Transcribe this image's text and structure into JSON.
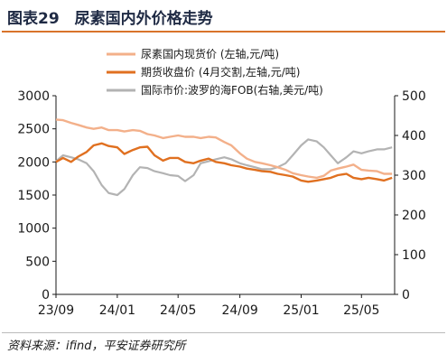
{
  "figure": {
    "title": "图表29　尿素国内外价格走势",
    "source": "资料来源：ifind，平安证券研究所"
  },
  "colors": {
    "title": "#1f2a44",
    "rule": "#d9732a",
    "series_domestic_spot": "#f3b08a",
    "series_futures": "#e07020",
    "series_international": "#b3b3b3"
  },
  "chart_data": {
    "type": "line",
    "x_ticks": [
      "23/09",
      "24/01",
      "24/05",
      "24/09",
      "25/01",
      "25/05"
    ],
    "x_range": [
      "2023-09",
      "2025-07"
    ],
    "y_left": {
      "ticks": [
        0,
        500,
        1000,
        1500,
        2000,
        2500,
        3000
      ],
      "ylim": [
        0,
        3000
      ]
    },
    "y_right": {
      "ticks": [
        0,
        100,
        200,
        300,
        400,
        500
      ],
      "ylim": [
        0,
        500
      ]
    },
    "grid": false,
    "legend_position": "top",
    "series": [
      {
        "name": "尿素国内现货价 (左轴,元/吨)",
        "axis": "left",
        "color_key": "series_domestic_spot",
        "points": [
          [
            "2023-09-01",
            2640
          ],
          [
            "2023-09-15",
            2630
          ],
          [
            "2023-10-01",
            2590
          ],
          [
            "2023-10-15",
            2560
          ],
          [
            "2023-11-01",
            2520
          ],
          [
            "2023-11-15",
            2500
          ],
          [
            "2023-12-01",
            2520
          ],
          [
            "2023-12-15",
            2480
          ],
          [
            "2024-01-01",
            2480
          ],
          [
            "2024-01-15",
            2460
          ],
          [
            "2024-02-01",
            2480
          ],
          [
            "2024-02-15",
            2470
          ],
          [
            "2024-03-01",
            2420
          ],
          [
            "2024-03-15",
            2400
          ],
          [
            "2024-04-01",
            2360
          ],
          [
            "2024-04-15",
            2380
          ],
          [
            "2024-05-01",
            2400
          ],
          [
            "2024-05-15",
            2380
          ],
          [
            "2024-06-01",
            2380
          ],
          [
            "2024-06-15",
            2360
          ],
          [
            "2024-07-01",
            2380
          ],
          [
            "2024-07-15",
            2370
          ],
          [
            "2024-08-01",
            2300
          ],
          [
            "2024-08-15",
            2250
          ],
          [
            "2024-09-01",
            2130
          ],
          [
            "2024-09-15",
            2050
          ],
          [
            "2024-10-01",
            2000
          ],
          [
            "2024-10-15",
            1980
          ],
          [
            "2024-11-01",
            1950
          ],
          [
            "2024-11-15",
            1920
          ],
          [
            "2024-12-01",
            1880
          ],
          [
            "2024-12-15",
            1830
          ],
          [
            "2025-01-01",
            1800
          ],
          [
            "2025-01-15",
            1780
          ],
          [
            "2025-02-01",
            1760
          ],
          [
            "2025-02-15",
            1790
          ],
          [
            "2025-03-01",
            1870
          ],
          [
            "2025-03-15",
            1900
          ],
          [
            "2025-04-01",
            1930
          ],
          [
            "2025-04-15",
            1960
          ],
          [
            "2025-05-01",
            1880
          ],
          [
            "2025-05-15",
            1870
          ],
          [
            "2025-06-01",
            1860
          ],
          [
            "2025-06-15",
            1820
          ],
          [
            "2025-07-01",
            1820
          ]
        ]
      },
      {
        "name": "期货收盘价 (4月交割,左轴,元/吨)",
        "axis": "left",
        "color_key": "series_futures",
        "points": [
          [
            "2023-09-01",
            2000
          ],
          [
            "2023-09-15",
            2060
          ],
          [
            "2023-10-01",
            2000
          ],
          [
            "2023-10-15",
            2080
          ],
          [
            "2023-11-01",
            2150
          ],
          [
            "2023-11-15",
            2250
          ],
          [
            "2023-12-01",
            2280
          ],
          [
            "2023-12-15",
            2240
          ],
          [
            "2024-01-01",
            2220
          ],
          [
            "2024-01-15",
            2120
          ],
          [
            "2024-02-01",
            2180
          ],
          [
            "2024-02-15",
            2220
          ],
          [
            "2024-03-01",
            2230
          ],
          [
            "2024-03-15",
            2100
          ],
          [
            "2024-04-01",
            2020
          ],
          [
            "2024-04-15",
            2060
          ],
          [
            "2024-05-01",
            2060
          ],
          [
            "2024-05-15",
            2000
          ],
          [
            "2024-06-01",
            1980
          ],
          [
            "2024-06-15",
            2020
          ],
          [
            "2024-07-01",
            2050
          ],
          [
            "2024-07-15",
            2000
          ],
          [
            "2024-08-01",
            1980
          ],
          [
            "2024-08-15",
            1950
          ],
          [
            "2024-09-01",
            1930
          ],
          [
            "2024-09-15",
            1900
          ],
          [
            "2024-10-01",
            1880
          ],
          [
            "2024-10-15",
            1860
          ],
          [
            "2024-11-01",
            1850
          ],
          [
            "2024-11-15",
            1820
          ],
          [
            "2024-12-01",
            1800
          ],
          [
            "2024-12-15",
            1780
          ],
          [
            "2025-01-01",
            1720
          ],
          [
            "2025-01-15",
            1700
          ],
          [
            "2025-02-01",
            1720
          ],
          [
            "2025-02-15",
            1740
          ],
          [
            "2025-03-01",
            1760
          ],
          [
            "2025-03-15",
            1800
          ],
          [
            "2025-04-01",
            1820
          ],
          [
            "2025-04-15",
            1760
          ],
          [
            "2025-05-01",
            1740
          ],
          [
            "2025-05-15",
            1760
          ],
          [
            "2025-06-01",
            1740
          ],
          [
            "2025-06-15",
            1720
          ],
          [
            "2025-07-01",
            1760
          ]
        ]
      },
      {
        "name": "国际市价:波罗的海FOB(右轴,美元/吨)",
        "axis": "right",
        "color_key": "series_international",
        "points": [
          [
            "2023-09-01",
            335
          ],
          [
            "2023-09-15",
            350
          ],
          [
            "2023-10-01",
            345
          ],
          [
            "2023-10-15",
            340
          ],
          [
            "2023-11-01",
            330
          ],
          [
            "2023-11-15",
            310
          ],
          [
            "2023-12-01",
            275
          ],
          [
            "2023-12-15",
            255
          ],
          [
            "2024-01-01",
            250
          ],
          [
            "2024-01-15",
            265
          ],
          [
            "2024-02-01",
            300
          ],
          [
            "2024-02-15",
            320
          ],
          [
            "2024-03-01",
            318
          ],
          [
            "2024-03-15",
            310
          ],
          [
            "2024-04-01",
            305
          ],
          [
            "2024-04-15",
            300
          ],
          [
            "2024-05-01",
            298
          ],
          [
            "2024-05-15",
            285
          ],
          [
            "2024-06-01",
            300
          ],
          [
            "2024-06-15",
            330
          ],
          [
            "2024-07-01",
            335
          ],
          [
            "2024-07-15",
            340
          ],
          [
            "2024-08-01",
            345
          ],
          [
            "2024-08-15",
            340
          ],
          [
            "2024-09-01",
            330
          ],
          [
            "2024-09-15",
            325
          ],
          [
            "2024-10-01",
            320
          ],
          [
            "2024-10-15",
            315
          ],
          [
            "2024-11-01",
            315
          ],
          [
            "2024-11-15",
            320
          ],
          [
            "2024-12-01",
            330
          ],
          [
            "2024-12-15",
            350
          ],
          [
            "2025-01-01",
            375
          ],
          [
            "2025-01-15",
            390
          ],
          [
            "2025-02-01",
            385
          ],
          [
            "2025-02-15",
            370
          ],
          [
            "2025-03-01",
            350
          ],
          [
            "2025-03-15",
            330
          ],
          [
            "2025-04-01",
            345
          ],
          [
            "2025-04-15",
            360
          ],
          [
            "2025-05-01",
            355
          ],
          [
            "2025-05-15",
            360
          ],
          [
            "2025-06-01",
            365
          ],
          [
            "2025-06-15",
            365
          ],
          [
            "2025-07-01",
            370
          ]
        ]
      }
    ]
  }
}
